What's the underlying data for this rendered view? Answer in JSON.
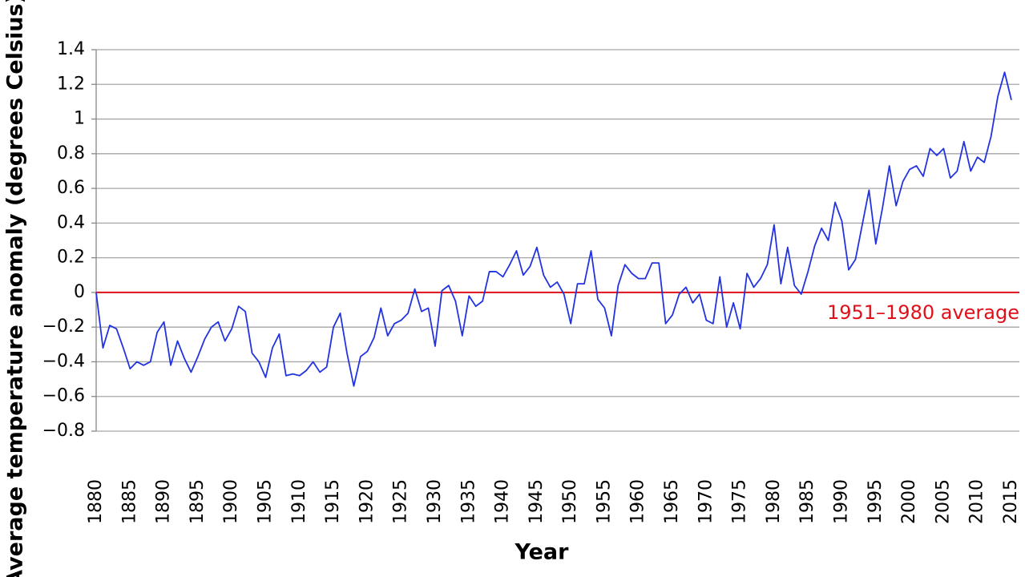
{
  "chart_data": {
    "type": "line",
    "x_label": "Year",
    "y_label": "Average temperature anomaly (degrees Celsius)",
    "x": [
      1880,
      1881,
      1882,
      1883,
      1884,
      1885,
      1886,
      1887,
      1888,
      1889,
      1890,
      1891,
      1892,
      1893,
      1894,
      1895,
      1896,
      1897,
      1898,
      1899,
      1900,
      1901,
      1902,
      1903,
      1904,
      1905,
      1906,
      1907,
      1908,
      1909,
      1910,
      1911,
      1912,
      1913,
      1914,
      1915,
      1916,
      1917,
      1918,
      1919,
      1920,
      1921,
      1922,
      1923,
      1924,
      1925,
      1926,
      1927,
      1928,
      1929,
      1930,
      1931,
      1932,
      1933,
      1934,
      1935,
      1936,
      1937,
      1938,
      1939,
      1940,
      1941,
      1942,
      1943,
      1944,
      1945,
      1946,
      1947,
      1948,
      1949,
      1950,
      1951,
      1952,
      1953,
      1954,
      1955,
      1956,
      1957,
      1958,
      1959,
      1960,
      1961,
      1962,
      1963,
      1964,
      1965,
      1966,
      1967,
      1968,
      1969,
      1970,
      1971,
      1972,
      1973,
      1974,
      1975,
      1976,
      1977,
      1978,
      1979,
      1980,
      1981,
      1982,
      1983,
      1984,
      1985,
      1986,
      1987,
      1988,
      1989,
      1990,
      1991,
      1992,
      1993,
      1994,
      1995,
      1996,
      1997,
      1998,
      1999,
      2000,
      2001,
      2002,
      2003,
      2004,
      2005,
      2006,
      2007,
      2008,
      2009,
      2010,
      2011,
      2012,
      2013,
      2014,
      2015
    ],
    "series": [
      {
        "name": "Average temperature anomaly",
        "color": "#2233e0",
        "values": [
          0.0,
          -0.32,
          -0.19,
          -0.21,
          -0.32,
          -0.44,
          -0.4,
          -0.42,
          -0.4,
          -0.23,
          -0.17,
          -0.42,
          -0.28,
          -0.38,
          -0.46,
          -0.37,
          -0.27,
          -0.2,
          -0.17,
          -0.28,
          -0.21,
          -0.08,
          -0.11,
          -0.35,
          -0.4,
          -0.49,
          -0.32,
          -0.24,
          -0.48,
          -0.47,
          -0.48,
          -0.45,
          -0.4,
          -0.46,
          -0.43,
          -0.2,
          -0.12,
          -0.35,
          -0.54,
          -0.37,
          -0.34,
          -0.26,
          -0.09,
          -0.25,
          -0.18,
          -0.16,
          -0.12,
          0.02,
          -0.11,
          -0.09,
          -0.31,
          0.01,
          0.04,
          -0.05,
          -0.25,
          -0.02,
          -0.08,
          -0.05,
          0.12,
          0.12,
          0.09,
          0.16,
          0.24,
          0.1,
          0.15,
          0.26,
          0.1,
          0.03,
          0.06,
          -0.01,
          -0.18,
          0.05,
          0.05,
          0.24,
          -0.04,
          -0.09,
          -0.25,
          0.04,
          0.16,
          0.11,
          0.08,
          0.08,
          0.17,
          0.17,
          -0.18,
          -0.13,
          -0.01,
          0.03,
          -0.06,
          -0.01,
          -0.16,
          -0.18,
          0.09,
          -0.2,
          -0.06,
          -0.21,
          0.11,
          0.03,
          0.08,
          0.16,
          0.39,
          0.05,
          0.26,
          0.04,
          -0.01,
          0.12,
          0.27,
          0.37,
          0.3,
          0.52,
          0.41,
          0.13,
          0.19,
          0.39,
          0.59,
          0.28,
          0.49,
          0.73,
          0.5,
          0.64,
          0.71,
          0.73,
          0.67,
          0.83,
          0.79,
          0.83,
          0.66,
          0.7,
          0.87,
          0.7,
          0.78,
          0.75,
          0.9,
          1.13,
          1.27,
          1.11
        ]
      }
    ],
    "xlim": [
      1880,
      2015
    ],
    "xticks": [
      1880,
      1885,
      1890,
      1895,
      1900,
      1905,
      1910,
      1915,
      1920,
      1925,
      1930,
      1935,
      1940,
      1945,
      1950,
      1955,
      1960,
      1965,
      1970,
      1975,
      1980,
      1985,
      1990,
      1995,
      2000,
      2005,
      2010,
      2015
    ],
    "ylim": [
      -0.8,
      1.4
    ],
    "yticks": [
      1.4,
      1.2,
      1,
      0.8,
      0.6,
      0.4,
      0.2,
      0,
      {
        "value": -0.2,
        "label": "−0.2"
      },
      {
        "value": -0.4,
        "label": "−0.4"
      },
      {
        "value": -0.6,
        "label": "−0.6"
      },
      {
        "value": -0.8,
        "label": "−0.8"
      }
    ],
    "grid": true,
    "reference_line": {
      "value": 0,
      "label": "1951–1980 average",
      "color": "#e0101a"
    }
  }
}
